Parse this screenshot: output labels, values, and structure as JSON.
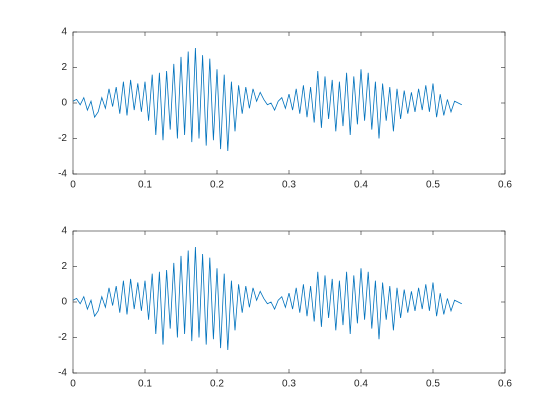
{
  "chart_data": [
    {
      "type": "line",
      "x": [
        0,
        0.005,
        0.01,
        0.015,
        0.02,
        0.025,
        0.03,
        0.035,
        0.04,
        0.045,
        0.05,
        0.055,
        0.06,
        0.065,
        0.07,
        0.075,
        0.08,
        0.085,
        0.09,
        0.095,
        0.1,
        0.105,
        0.11,
        0.115,
        0.12,
        0.125,
        0.13,
        0.135,
        0.14,
        0.145,
        0.15,
        0.155,
        0.16,
        0.165,
        0.17,
        0.175,
        0.18,
        0.185,
        0.19,
        0.195,
        0.2,
        0.205,
        0.21,
        0.215,
        0.22,
        0.225,
        0.23,
        0.235,
        0.24,
        0.245,
        0.25,
        0.255,
        0.26,
        0.265,
        0.27,
        0.275,
        0.28,
        0.285,
        0.29,
        0.295,
        0.3,
        0.305,
        0.31,
        0.315,
        0.32,
        0.325,
        0.33,
        0.335,
        0.34,
        0.345,
        0.35,
        0.355,
        0.36,
        0.365,
        0.37,
        0.375,
        0.38,
        0.385,
        0.39,
        0.395,
        0.4,
        0.405,
        0.41,
        0.415,
        0.42,
        0.425,
        0.43,
        0.435,
        0.44,
        0.445,
        0.45,
        0.455,
        0.46,
        0.465,
        0.47,
        0.475,
        0.48,
        0.485,
        0.49,
        0.495,
        0.5,
        0.505,
        0.51,
        0.515,
        0.52,
        0.525,
        0.53,
        0.535,
        0.54
      ],
      "values": [
        0.1,
        0.2,
        -0.1,
        0.3,
        -0.4,
        0.1,
        -0.8,
        -0.5,
        0.3,
        -0.3,
        0.8,
        -0.2,
        0.9,
        -0.6,
        1.2,
        -0.7,
        1.3,
        -0.4,
        1.1,
        -0.5,
        1.2,
        -1.0,
        1.6,
        -1.8,
        1.7,
        -2.1,
        1.8,
        -1.5,
        2.2,
        -2.0,
        2.6,
        -1.8,
        2.9,
        -2.2,
        3.1,
        -2.0,
        2.7,
        -2.4,
        2.5,
        -2.1,
        1.9,
        -2.6,
        1.6,
        -2.7,
        1.2,
        -1.6,
        1.0,
        -0.6,
        0.9,
        -0.3,
        0.8,
        0.1,
        0.6,
        0.2,
        -0.1,
        0.0,
        -0.4,
        0.1,
        0.3,
        -0.3,
        0.5,
        -0.4,
        0.8,
        -0.6,
        1.0,
        -0.8,
        0.9,
        -1.1,
        1.8,
        -1.4,
        1.5,
        -0.9,
        1.3,
        -1.6,
        1.2,
        -1.3,
        1.7,
        -1.8,
        1.5,
        -1.2,
        1.9,
        -1.0,
        1.7,
        -1.5,
        1.2,
        -2.0,
        1.1,
        -1.0,
        0.9,
        -1.6,
        0.8,
        -0.9,
        0.7,
        -0.6,
        0.6,
        -0.5,
        0.8,
        -0.4,
        1.0,
        -0.5,
        1.1,
        -0.8,
        0.5,
        -0.7,
        0.2,
        -0.5,
        0.1,
        0.0,
        -0.1
      ],
      "color": "#0072bd",
      "xlim": [
        0,
        0.6
      ],
      "xticks": [
        0,
        0.1,
        0.2,
        0.3,
        0.4,
        0.5,
        0.6
      ],
      "ylim": [
        -4,
        4
      ],
      "yticks": [
        -4,
        -2,
        0,
        2,
        4
      ]
    },
    {
      "type": "line",
      "x": [
        0,
        0.005,
        0.01,
        0.015,
        0.02,
        0.025,
        0.03,
        0.035,
        0.04,
        0.045,
        0.05,
        0.055,
        0.06,
        0.065,
        0.07,
        0.075,
        0.08,
        0.085,
        0.09,
        0.095,
        0.1,
        0.105,
        0.11,
        0.115,
        0.12,
        0.125,
        0.13,
        0.135,
        0.14,
        0.145,
        0.15,
        0.155,
        0.16,
        0.165,
        0.17,
        0.175,
        0.18,
        0.185,
        0.19,
        0.195,
        0.2,
        0.205,
        0.21,
        0.215,
        0.22,
        0.225,
        0.23,
        0.235,
        0.24,
        0.245,
        0.25,
        0.255,
        0.26,
        0.265,
        0.27,
        0.275,
        0.28,
        0.285,
        0.29,
        0.295,
        0.3,
        0.305,
        0.31,
        0.315,
        0.32,
        0.325,
        0.33,
        0.335,
        0.34,
        0.345,
        0.35,
        0.355,
        0.36,
        0.365,
        0.37,
        0.375,
        0.38,
        0.385,
        0.39,
        0.395,
        0.4,
        0.405,
        0.41,
        0.415,
        0.42,
        0.425,
        0.43,
        0.435,
        0.44,
        0.445,
        0.45,
        0.455,
        0.46,
        0.465,
        0.47,
        0.475,
        0.48,
        0.485,
        0.49,
        0.495,
        0.5,
        0.505,
        0.51,
        0.515,
        0.52,
        0.525,
        0.53,
        0.535,
        0.54
      ],
      "values": [
        0.1,
        0.2,
        -0.1,
        0.3,
        -0.4,
        0.1,
        -0.8,
        -0.5,
        0.3,
        -0.3,
        0.8,
        -0.2,
        0.9,
        -0.6,
        1.2,
        -0.7,
        1.3,
        -0.4,
        1.1,
        -0.5,
        1.2,
        -1.0,
        1.6,
        -1.8,
        1.7,
        -2.4,
        1.8,
        -1.5,
        2.2,
        -2.0,
        2.6,
        -1.8,
        2.9,
        -2.2,
        3.1,
        -2.0,
        2.7,
        -2.4,
        2.5,
        -2.1,
        1.9,
        -2.6,
        1.6,
        -2.7,
        1.2,
        -1.6,
        1.0,
        -0.6,
        0.9,
        -0.3,
        0.8,
        0.1,
        0.6,
        0.2,
        -0.1,
        0.0,
        -0.4,
        0.1,
        0.3,
        -0.3,
        0.5,
        -0.4,
        0.8,
        -0.6,
        1.0,
        -0.8,
        0.9,
        -1.1,
        1.7,
        -1.4,
        1.5,
        -0.9,
        1.3,
        -1.6,
        1.2,
        -1.3,
        1.7,
        -1.8,
        1.5,
        -1.2,
        1.9,
        -1.0,
        1.7,
        -1.5,
        1.2,
        -2.1,
        1.1,
        -1.0,
        0.9,
        -1.6,
        0.8,
        -0.9,
        0.7,
        -0.6,
        0.6,
        -0.5,
        0.8,
        -0.4,
        1.0,
        -0.5,
        1.1,
        -0.8,
        0.5,
        -0.7,
        0.2,
        -0.5,
        0.1,
        0.0,
        -0.1
      ],
      "color": "#0072bd",
      "xlim": [
        0,
        0.6
      ],
      "xticks": [
        0,
        0.1,
        0.2,
        0.3,
        0.4,
        0.5,
        0.6
      ],
      "ylim": [
        -4,
        4
      ],
      "yticks": [
        -4,
        -2,
        0,
        2,
        4
      ]
    }
  ]
}
